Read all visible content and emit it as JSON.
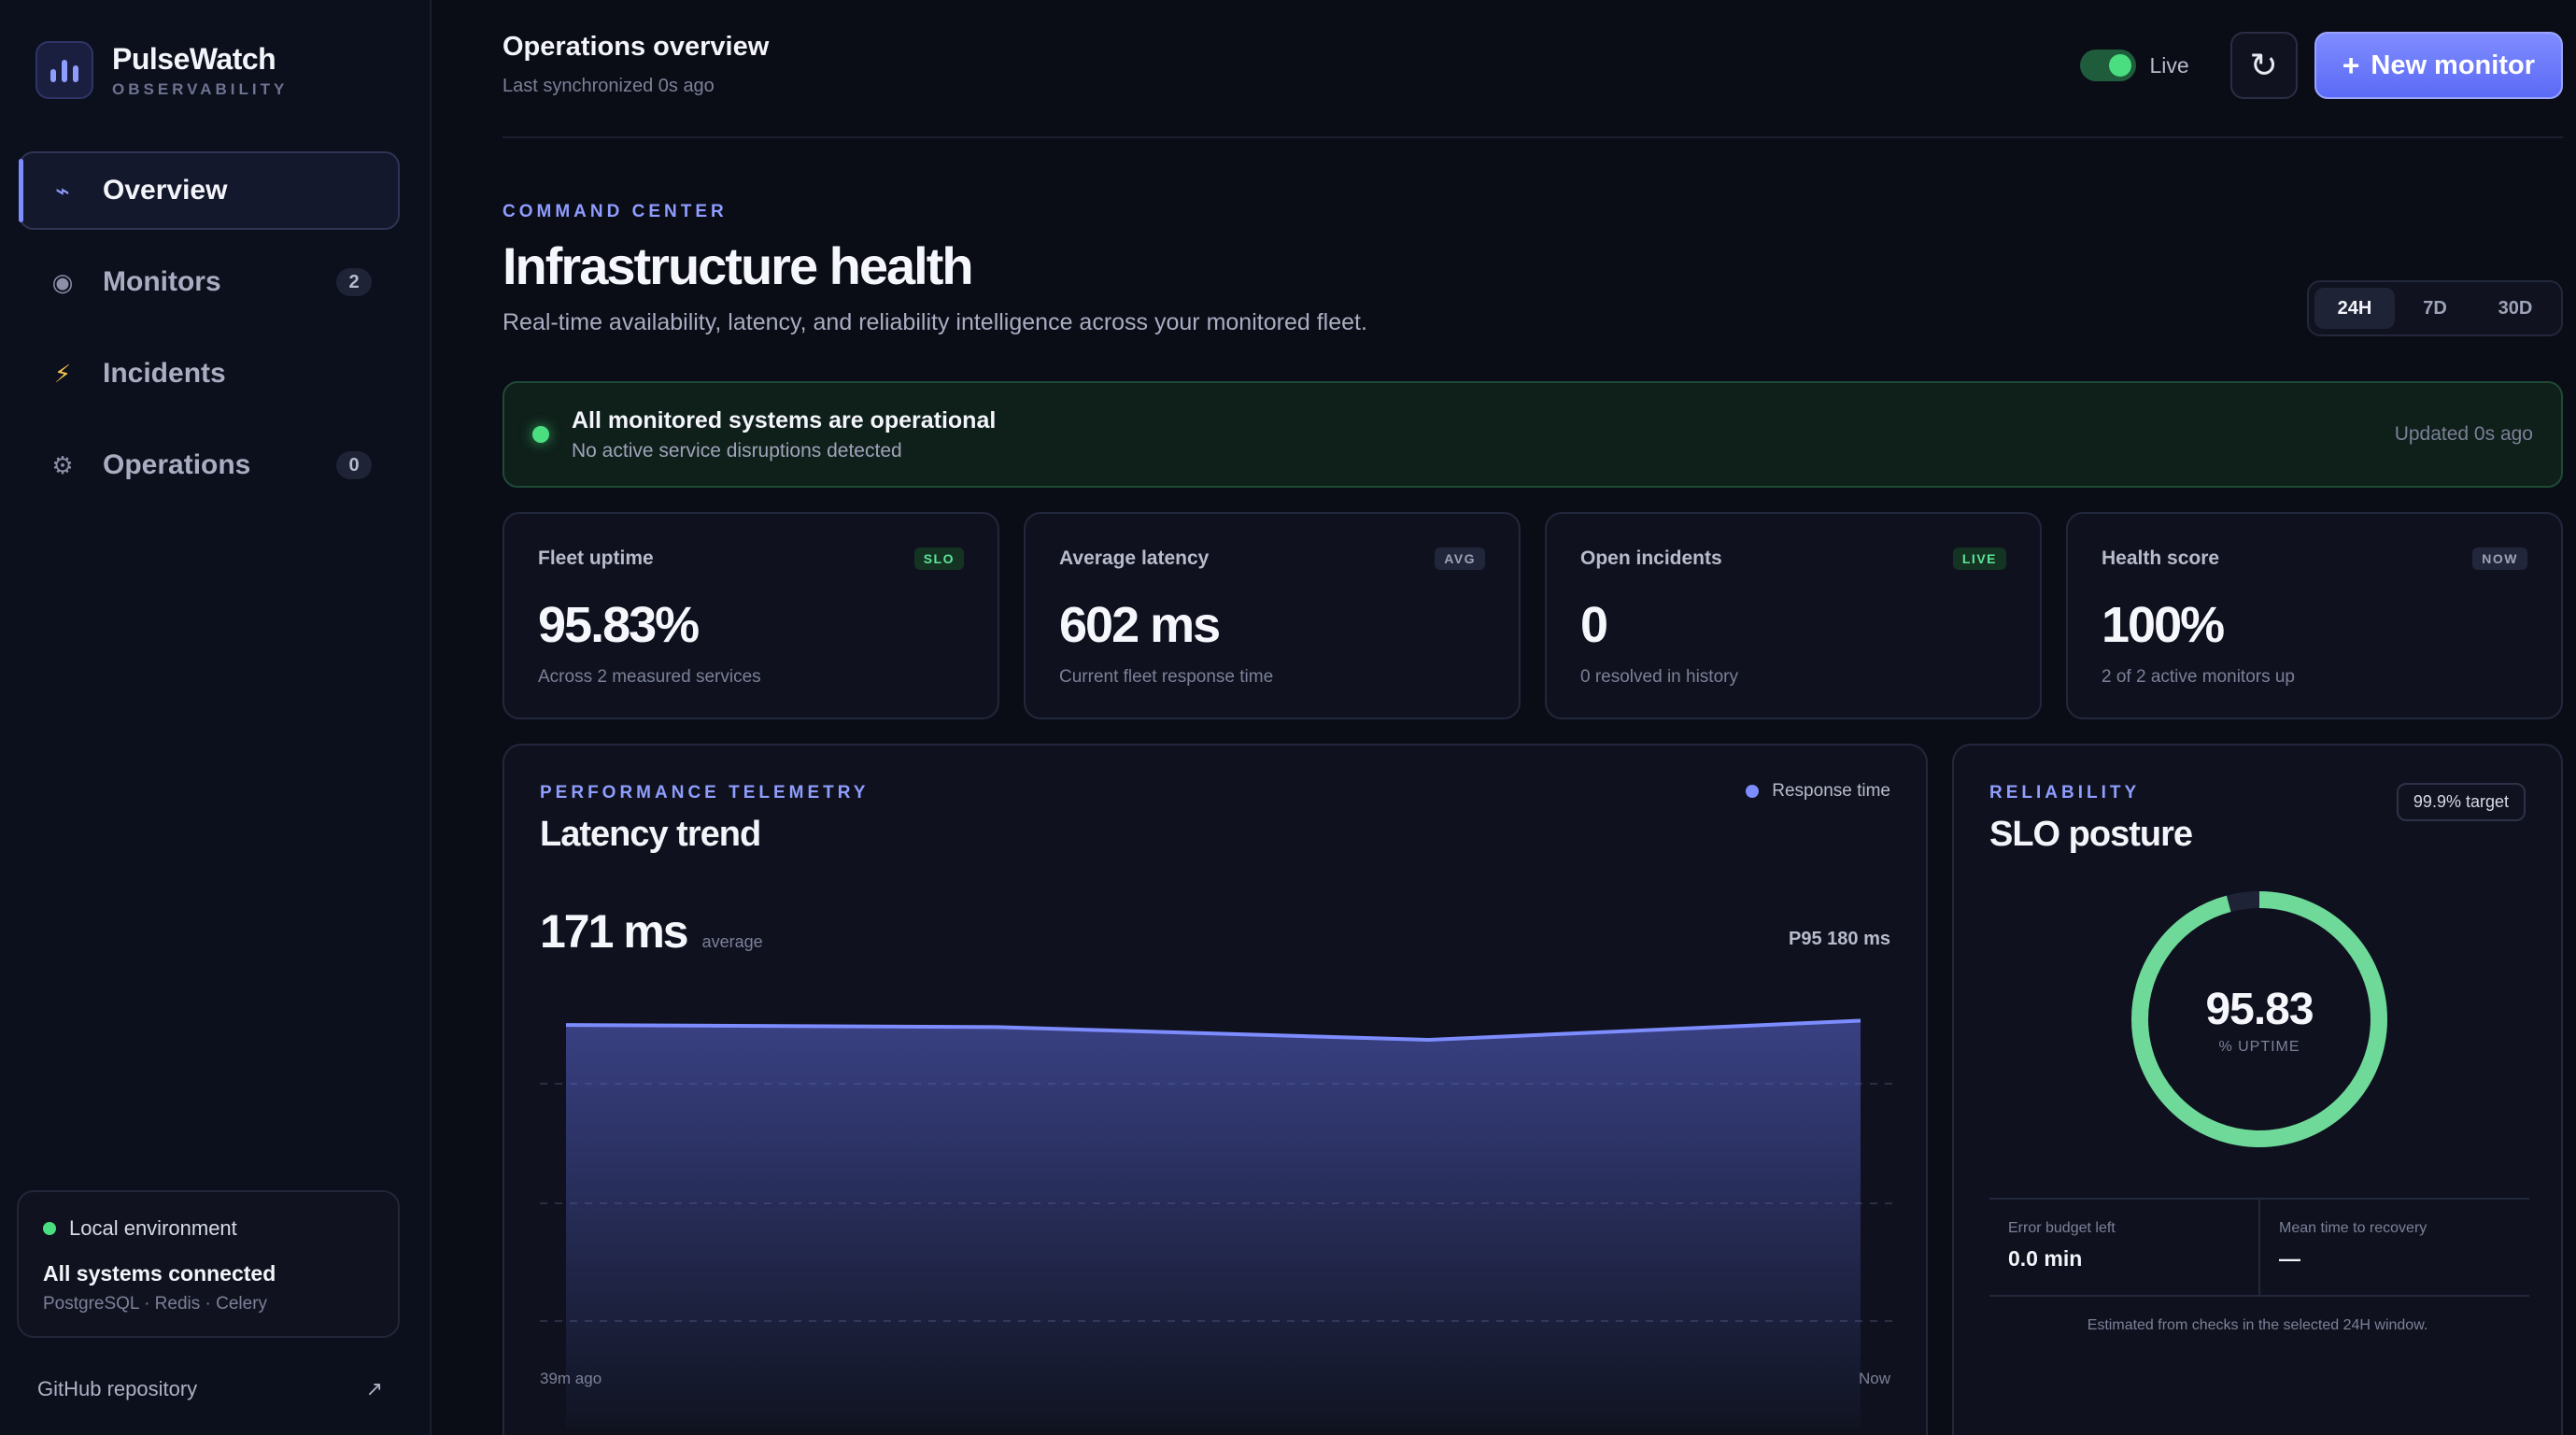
{
  "brand": {
    "name": "PulseWatch",
    "subtitle": "OBSERVABILITY"
  },
  "sidebar": {
    "items": [
      {
        "label": "Overview",
        "icon": "pulse-icon",
        "glyph": "⌁",
        "count": null,
        "active": true
      },
      {
        "label": "Monitors",
        "icon": "radar-icon",
        "glyph": "◉",
        "count": "2",
        "active": false
      },
      {
        "label": "Incidents",
        "icon": "lightning-icon",
        "glyph": "⚡",
        "count": null,
        "active": false
      },
      {
        "label": "Operations",
        "icon": "gear-icon",
        "glyph": "⚙",
        "count": "0",
        "active": false
      }
    ],
    "environment": {
      "label": "Local environment",
      "title": "All systems connected",
      "services": "PostgreSQL · Redis · Celery"
    },
    "github": {
      "label": "GitHub repository",
      "arrow": "↗"
    }
  },
  "header": {
    "title": "Operations overview",
    "subtitle": "Last synchronized 0s ago",
    "live_label": "Live",
    "live_on": true,
    "refresh_glyph": "↻",
    "new_monitor": "New monitor",
    "new_monitor_plus": "+"
  },
  "hero": {
    "eyebrow": "COMMAND CENTER",
    "title": "Infrastructure health",
    "description": "Real-time availability, latency, and reliability intelligence across your monitored fleet."
  },
  "range": {
    "options": [
      "24H",
      "7D",
      "30D"
    ],
    "selected": "24H"
  },
  "banner": {
    "title": "All monitored systems are operational",
    "subtitle": "No active service disruptions detected",
    "updated": "Updated 0s ago"
  },
  "kpis": [
    {
      "label": "Fleet uptime",
      "badge": "SLO",
      "badge_style": "green",
      "value": "95.83%",
      "sub": "Across 2 measured services"
    },
    {
      "label": "Average latency",
      "badge": "AVG",
      "badge_style": "gray",
      "value": "602 ms",
      "sub": "Current fleet response time"
    },
    {
      "label": "Open incidents",
      "badge": "LIVE",
      "badge_style": "green",
      "value": "0",
      "sub": "0 resolved in history"
    },
    {
      "label": "Health score",
      "badge": "NOW",
      "badge_style": "gray",
      "value": "100%",
      "sub": "2 of 2 active monitors up"
    }
  ],
  "latency": {
    "eyebrow": "PERFORMANCE TELEMETRY",
    "title": "Latency trend",
    "legend": "Response time",
    "average": "171 ms",
    "average_label": "average",
    "p95": "P95 180 ms",
    "x_start": "39m ago",
    "x_end": "Now"
  },
  "chart_data": {
    "type": "area",
    "series": [
      {
        "name": "Response time",
        "values": [
          172,
          171,
          165,
          174
        ]
      }
    ],
    "ylim": [
      0,
      176
    ],
    "color": "#7d8cff"
  },
  "slo": {
    "eyebrow": "RELIABILITY",
    "title": "SLO posture",
    "target": "99.9% target",
    "uptime_value": "95.83",
    "uptime_fraction": 0.9583,
    "uptime_unit": "% UPTIME",
    "error_budget_label": "Error budget left",
    "error_budget_value": "0.0 min",
    "mttr_label": "Mean time to recovery",
    "mttr_value": "—",
    "note": "Estimated from checks in the selected 24H window."
  },
  "colors": {
    "accent": "#7d8cff",
    "success": "#4ade80",
    "gauge": "#6fd99a",
    "background": "#0a0c16"
  }
}
